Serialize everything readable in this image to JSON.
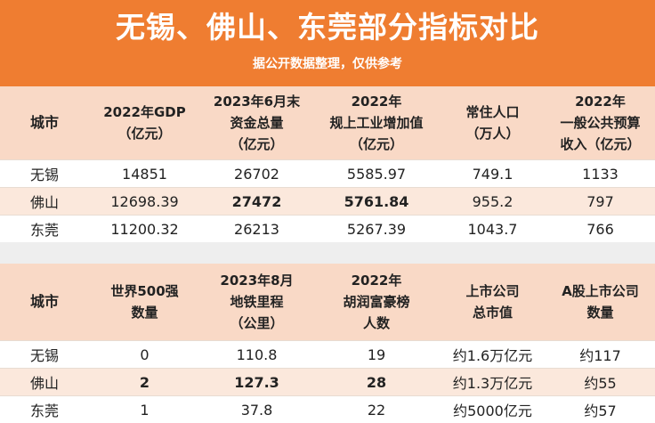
{
  "title": "无锡、佛山、东莞部分指标对比",
  "subtitle": "据公开数据整理，仅供参考",
  "table1": {
    "headers": [
      [
        "城市"
      ],
      [
        "2022年GDP",
        "（亿元）"
      ],
      [
        "2023年6月末",
        "资金总量",
        "（亿元）"
      ],
      [
        "2022年",
        "规上工业增加值",
        "（亿元）"
      ],
      [
        "常住人口",
        "（万人）"
      ],
      [
        "2022年",
        "一般公共预算",
        "收入（亿元）"
      ]
    ],
    "rows": [
      {
        "cells": [
          "无锡",
          "14851",
          "26702",
          "5585.97",
          "749.1",
          "1133"
        ],
        "bold": []
      },
      {
        "cells": [
          "佛山",
          "12698.39",
          "27472",
          "5761.84",
          "955.2",
          "797"
        ],
        "bold": [
          2,
          3
        ]
      },
      {
        "cells": [
          "东莞",
          "11200.32",
          "26213",
          "5267.39",
          "1043.7",
          "766"
        ],
        "bold": []
      }
    ]
  },
  "table2": {
    "headers": [
      [
        "城市"
      ],
      [
        "世界500强",
        "数量"
      ],
      [
        "2023年8月",
        "地铁里程",
        "（公里）"
      ],
      [
        "2022年",
        "胡润富豪榜",
        "人数"
      ],
      [
        "上市公司",
        "总市值"
      ],
      [
        "A股上市公司",
        "数量"
      ]
    ],
    "rows": [
      {
        "cells": [
          "无锡",
          "0",
          "110.8",
          "19",
          "约1.6万亿元",
          "约117"
        ],
        "bold": []
      },
      {
        "cells": [
          "佛山",
          "2",
          "127.3",
          "28",
          "约1.3万亿元",
          "约55"
        ],
        "bold": [
          1,
          2,
          3
        ]
      },
      {
        "cells": [
          "东莞",
          "1",
          "37.8",
          "22",
          "约5000亿元",
          "约57"
        ],
        "bold": []
      }
    ]
  }
}
